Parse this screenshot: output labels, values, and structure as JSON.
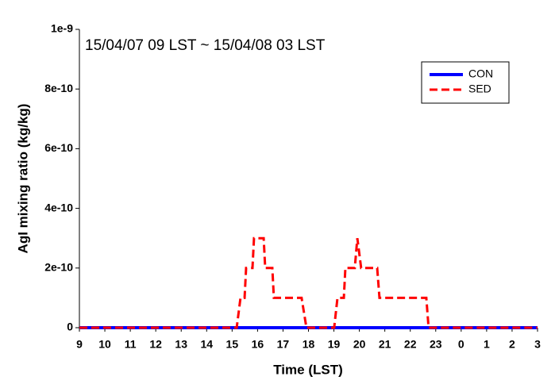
{
  "chart_data": {
    "type": "line",
    "title": "15/04/07 09 LST ~ 15/04/08 03 LST",
    "x_label": "Time (LST)",
    "y_label": "AgI mixing ratio (kg/kg)",
    "xlim": [
      9,
      27
    ],
    "xticks": [
      9,
      10,
      11,
      12,
      13,
      14,
      15,
      16,
      17,
      18,
      19,
      20,
      21,
      22,
      23,
      {
        "value": 24,
        "label": "0"
      },
      {
        "value": 25,
        "label": "1"
      },
      {
        "value": 26,
        "label": "2"
      },
      {
        "value": 27,
        "label": "3"
      }
    ],
    "ylim": [
      0,
      1e-09
    ],
    "yticks": [
      0,
      {
        "value": 2e-10,
        "label": "2e-10"
      },
      {
        "value": 4e-10,
        "label": "4e-10"
      },
      {
        "value": 6e-10,
        "label": "6e-10"
      },
      {
        "value": 8e-10,
        "label": "8e-10"
      },
      {
        "value": 1e-09,
        "label": "1e-9"
      }
    ],
    "legend": "upper right",
    "series": [
      {
        "name": "CON",
        "color": "#0000ff",
        "dash": false,
        "x": [
          9,
          27
        ],
        "values": [
          0,
          0
        ]
      },
      {
        "name": "SED",
        "color": "#ff0000",
        "dash": true,
        "x": [
          9,
          15.18,
          15.33,
          15.49,
          15.55,
          15.8,
          15.86,
          16.24,
          16.3,
          16.58,
          16.64,
          17.73,
          17.92,
          19.01,
          19.14,
          19.39,
          19.45,
          19.82,
          19.92,
          20.07,
          20.7,
          20.79,
          22.63,
          22.72,
          27
        ],
        "values": [
          0,
          0,
          1e-10,
          1e-10,
          2e-10,
          2e-10,
          3e-10,
          3e-10,
          2e-10,
          2e-10,
          1e-10,
          1e-10,
          0,
          0,
          1e-10,
          1e-10,
          2e-10,
          2e-10,
          3e-10,
          2e-10,
          2e-10,
          1e-10,
          1e-10,
          0,
          0
        ]
      }
    ]
  }
}
